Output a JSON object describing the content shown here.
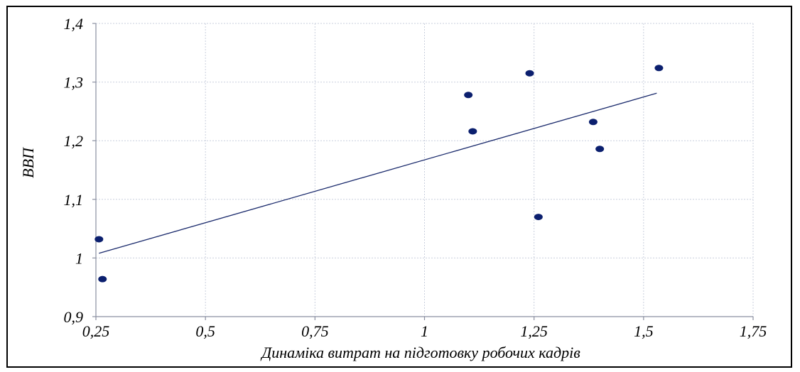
{
  "chart_data": {
    "type": "scatter",
    "title": "",
    "xlabel": "Динаміка витрат  на підготовку робочих кадрів",
    "ylabel": "ВВП",
    "xlim": [
      0.25,
      1.75
    ],
    "ylim": [
      0.9,
      1.4
    ],
    "x_ticks": [
      0.25,
      0.5,
      0.75,
      1,
      1.25,
      1.5,
      1.75
    ],
    "x_tick_labels": [
      "0,25",
      "0,5",
      "0,75",
      "1",
      "1,25",
      "1,5",
      "1,75"
    ],
    "y_ticks": [
      0.9,
      1.0,
      1.1,
      1.2,
      1.3,
      1.4
    ],
    "y_tick_labels": [
      "0,9",
      "1",
      "1,1",
      "1,2",
      "1,3",
      "1,4"
    ],
    "grid": true,
    "series": [
      {
        "type": "scatter",
        "color": "#0b1f6e",
        "points": [
          {
            "x": 0.257,
            "y": 1.032
          },
          {
            "x": 0.265,
            "y": 0.964
          },
          {
            "x": 1.1,
            "y": 1.278
          },
          {
            "x": 1.11,
            "y": 1.216
          },
          {
            "x": 1.24,
            "y": 1.315
          },
          {
            "x": 1.26,
            "y": 1.07
          },
          {
            "x": 1.385,
            "y": 1.232
          },
          {
            "x": 1.4,
            "y": 1.186
          },
          {
            "x": 1.535,
            "y": 1.324
          }
        ]
      },
      {
        "type": "trendline",
        "color": "#1a2a6c",
        "points": [
          {
            "x": 0.257,
            "y": 1.008
          },
          {
            "x": 1.53,
            "y": 1.281
          }
        ]
      }
    ]
  }
}
